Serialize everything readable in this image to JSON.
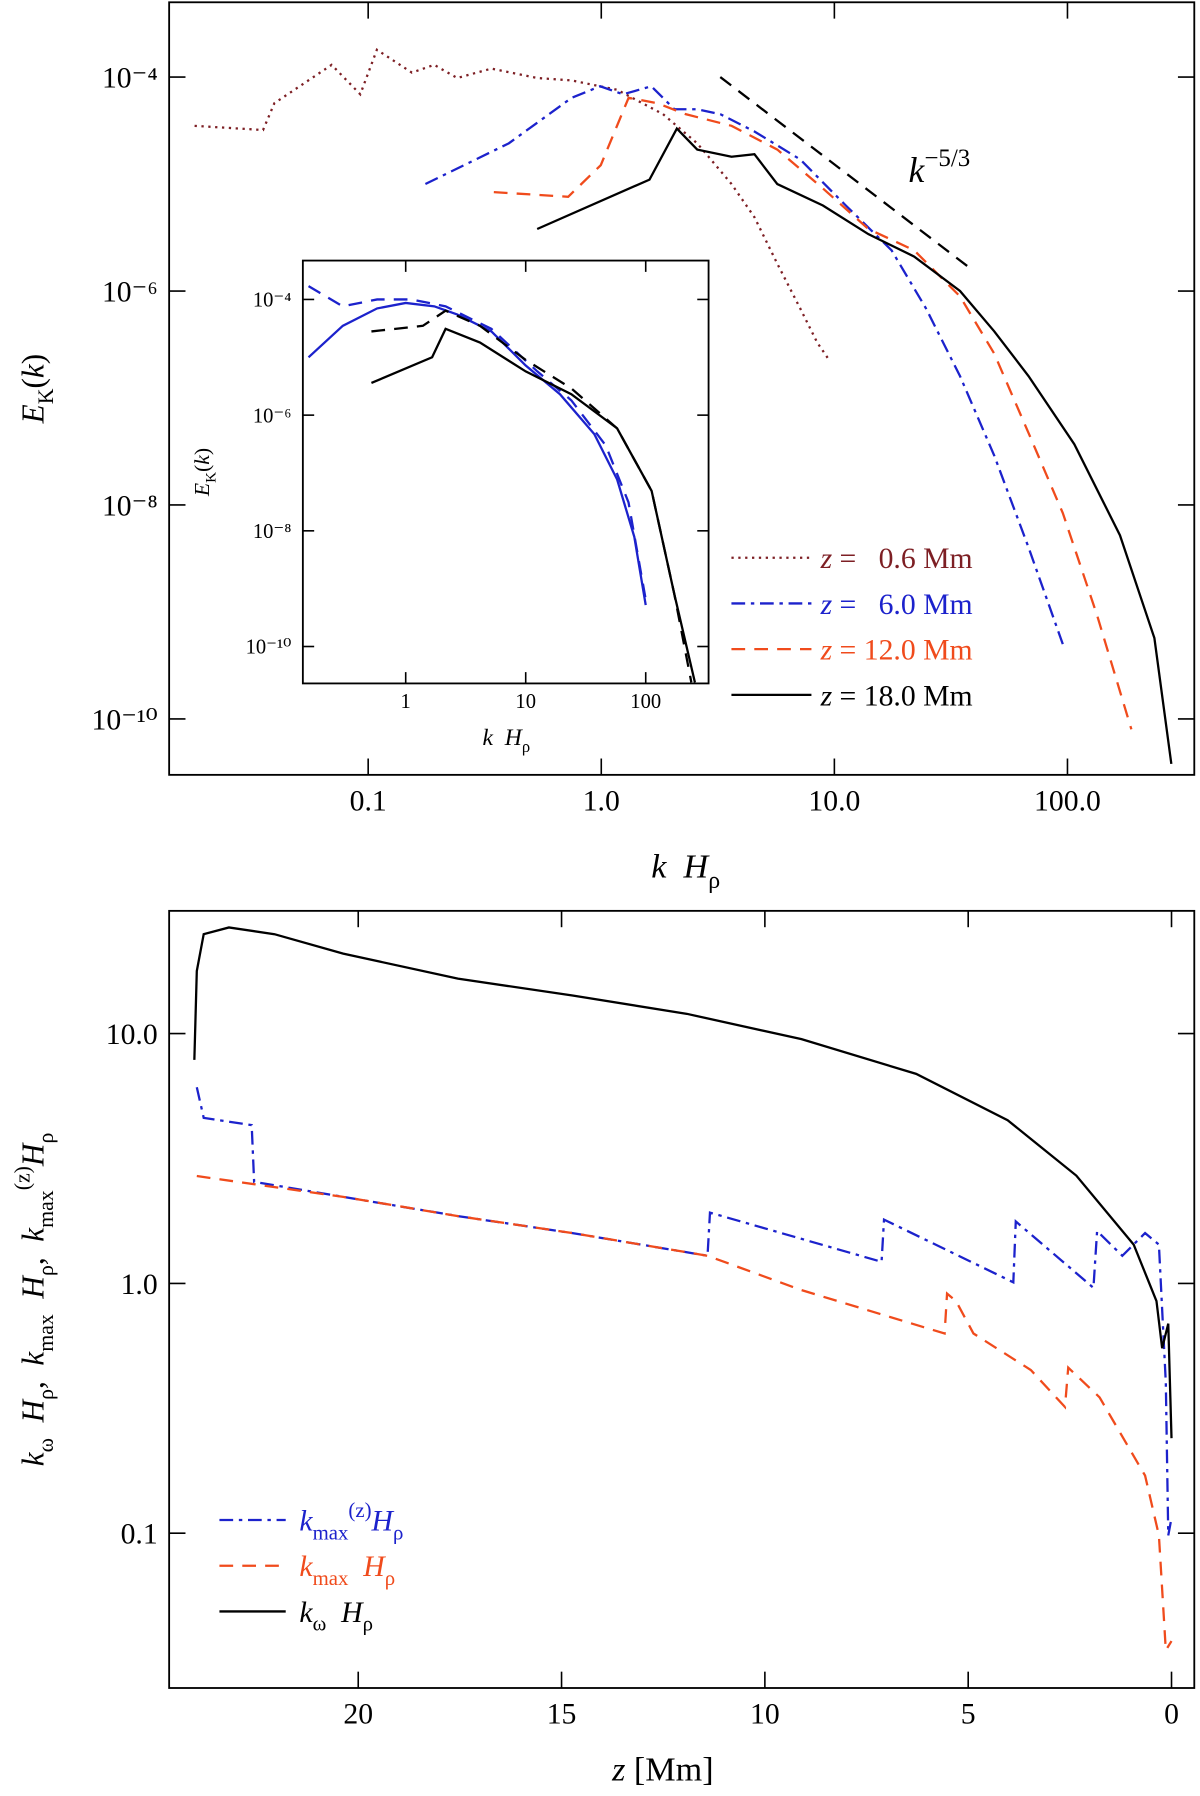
{
  "chart_data": [
    {
      "type": "line",
      "xlog": true,
      "ylog": true,
      "xlim": [
        0.014,
        350
      ],
      "ylim": [
        3e-11,
        0.0005
      ],
      "xticks": [
        0.1,
        {
          "value": 1,
          "label": "1.0"
        },
        {
          "value": 10,
          "label": "10.0"
        },
        {
          "value": 100,
          "label": "100.0"
        }
      ],
      "yticks": [
        {
          "value": 0.0001,
          "label": "10⁻⁴"
        },
        {
          "value": 1e-06,
          "label": "10⁻⁶"
        },
        {
          "value": 1e-08,
          "label": "10⁻⁸"
        },
        {
          "value": 1e-10,
          "label": "10⁻¹⁰"
        }
      ],
      "xlabel": [
        {
          "i": "k"
        },
        {
          "t": "  "
        },
        {
          "i": "H"
        },
        {
          "sub": "ρ"
        }
      ],
      "ylabel": [
        {
          "i": "E"
        },
        {
          "sub": "K"
        },
        {
          "t": "("
        },
        {
          "i": "k"
        },
        {
          "t": ")"
        }
      ],
      "legend": "lower right",
      "series": [
        {
          "name": [
            {
              "i": "z"
            },
            {
              "t": " =   0.6 Mm"
            }
          ],
          "color": "#7d1f24",
          "linestyle": "dotted",
          "x": [
            0.018,
            0.0354,
            0.0396,
            0.0697,
            0.0925,
            0.109,
            0.154,
            0.192,
            0.241,
            0.338,
            0.531,
            0.746,
            1.17,
            1.84,
            2.58,
            3.62,
            4.54,
            5.69,
            7.13,
            8.44,
            9.45
          ],
          "y": [
            3.5e-05,
            3.2e-05,
            5.7e-05,
            0.00013,
            6.9e-05,
            0.00018,
            0.00011,
            0.00013,
            9.8e-05,
            0.00012,
            9.8e-05,
            9.3e-05,
            7.6e-05,
            4.5e-05,
            2.4e-05,
            1e-05,
            4.9e-06,
            1.8e-06,
            6.9e-07,
            3.3e-07,
            2.3e-07
          ]
        },
        {
          "name": [
            {
              "i": "z"
            },
            {
              "t": " =   6.0 Mm"
            }
          ],
          "color": "#1c22cc",
          "linestyle": "dashdot",
          "x": [
            0.176,
            0.401,
            0.746,
            0.989,
            1.24,
            1.64,
            2.06,
            2.58,
            3.24,
            4.54,
            7.13,
            11.2,
            17.6,
            24.7,
            34.6,
            48.5,
            68.1,
            95.5
          ],
          "y": [
            1e-05,
            2.4e-05,
            6.4e-05,
            8.2e-05,
            6.9e-05,
            8.2e-05,
            5e-05,
            5e-05,
            4.5e-05,
            3.1e-05,
            1.7e-05,
            6.3e-06,
            2.4e-06,
            6.9e-07,
            1.6e-07,
            2.9e-08,
            4e-09,
            5e-10
          ]
        },
        {
          "name": [
            {
              "i": "z"
            },
            {
              "t": " = 12.0 Mm"
            }
          ],
          "color": "#f04b1c",
          "linestyle": "dashed",
          "x": [
            0.346,
            0.721,
            0.995,
            1.31,
            1.74,
            2.3,
            3.62,
            5.69,
            8.93,
            14.0,
            22.0,
            34.6,
            48.5,
            68.1,
            95.5,
            134,
            188
          ],
          "y": [
            8.4e-06,
            7.6e-06,
            1.5e-05,
            6.4e-05,
            5.7e-05,
            4.5e-05,
            3.5e-05,
            2.1e-05,
            9.1e-06,
            3.8e-06,
            2.4e-06,
            8.9e-07,
            2.6e-07,
            4.7e-08,
            8.4e-09,
            9.3e-10,
            8e-11
          ]
        },
        {
          "name": [
            {
              "i": "z"
            },
            {
              "t": " = 18.0 Mm"
            }
          ],
          "color": "#000000",
          "linestyle": "solid",
          "x": [
            0.531,
            1.61,
            2.11,
            2.58,
            3.62,
            4.54,
            5.69,
            8.93,
            14.0,
            22.0,
            34.6,
            48.5,
            68.1,
            107,
            168,
            236,
            279
          ],
          "y": [
            3.8e-06,
            1.1e-05,
            3.3e-05,
            2.1e-05,
            1.8e-05,
            1.9e-05,
            1e-05,
            6.3e-06,
            3.4e-06,
            2.1e-06,
            1e-06,
            4.2e-07,
            1.6e-07,
            3.7e-08,
            5.2e-09,
            5.7e-10,
            3.8e-11
          ]
        }
      ],
      "reference": {
        "x": [
          3.24,
          38.7
        ],
        "y": [
          0.0001,
          1.6e-06
        ],
        "color": "#000000",
        "linestyle": "dashed",
        "label": [
          {
            "i": "k"
          },
          {
            "sup": "−5/3"
          }
        ]
      }
    },
    {
      "type": "line",
      "xlog": true,
      "ylog": true,
      "xlim": [
        0.139,
        334
      ],
      "ylim": [
        2.3e-11,
        0.00047
      ],
      "xticks": [
        1,
        10,
        100
      ],
      "yticks": [
        {
          "value": 0.0001,
          "label": "10⁻⁴"
        },
        {
          "value": 1e-06,
          "label": "10⁻⁶"
        },
        {
          "value": 1e-08,
          "label": "10⁻⁸"
        },
        {
          "value": 1e-10,
          "label": "10⁻¹⁰"
        }
      ],
      "xlabel": [
        {
          "i": "k"
        },
        {
          "t": "  "
        },
        {
          "i": "H"
        },
        {
          "sub": "ρ"
        }
      ],
      "ylabel": [
        {
          "i": "E"
        },
        {
          "sub": "K"
        },
        {
          "t": "("
        },
        {
          "i": "k"
        },
        {
          "t": ")"
        }
      ],
      "series": [
        {
          "color": "#1c22cc",
          "linestyle": "solid",
          "x": [
            0.155,
            0.299,
            0.578,
            1,
            1.73,
            2.68,
            5.18,
            10,
            19.3,
            37.3,
            57.8,
            80.3,
            100
          ],
          "y": [
            1e-05,
            3.5e-05,
            7e-05,
            8.7e-05,
            7.6e-05,
            5.5e-05,
            2.8e-05,
            7.2e-06,
            2.3e-06,
            4.7e-07,
            7.7e-08,
            7.9e-09,
            5.2e-10
          ]
        },
        {
          "color": "#1c22cc",
          "linestyle": "dashed",
          "x": [
            0.155,
            0.299,
            0.578,
            1.12,
            2.15,
            5.18,
            12.5,
            24.0,
            46.4,
            71.9,
            100
          ],
          "y": [
            0.00017,
            7.6e-05,
            0.0001,
            0.0001,
            7.6e-05,
            3.1e-05,
            5.7e-06,
            1.8e-06,
            3e-07,
            3.1e-08,
            6.5e-10
          ]
        },
        {
          "color": "#000000",
          "linestyle": "dashed",
          "x": [
            0.518,
            1.39,
            2.15,
            4.16,
            10,
            24.0,
            57.8,
            112,
            173,
            240
          ],
          "y": [
            2.8e-05,
            3.5e-05,
            6.4e-05,
            3.5e-05,
            9e-06,
            2.9e-06,
            5.9e-07,
            4.9e-08,
            8.1e-10,
            2.4e-11
          ]
        },
        {
          "color": "#000000",
          "linestyle": "solid",
          "x": [
            0.518,
            1.66,
            2.15,
            4.16,
            10,
            24.0,
            57.8,
            112,
            173,
            257
          ],
          "y": [
            3.6e-06,
            1e-05,
            3.1e-05,
            1.8e-05,
            5.7e-06,
            2.3e-06,
            5.9e-07,
            4.9e-08,
            8.1e-10,
            2.4e-11
          ]
        }
      ]
    },
    {
      "type": "line",
      "xlog": false,
      "ylog": true,
      "xlim": [
        24.65,
        -0.56
      ],
      "ylim": [
        0.024,
        31
      ],
      "xticks": [
        20,
        15,
        10,
        5,
        0
      ],
      "yticks": [
        {
          "value": 10,
          "label": "10.0"
        },
        {
          "value": 1,
          "label": "1.0"
        },
        0.1
      ],
      "xlabel": [
        {
          "i": "z"
        },
        {
          "t": " [Mm]"
        }
      ],
      "ylabel": [
        {
          "i": "k"
        },
        {
          "sub": "ω"
        },
        {
          "t": "  "
        },
        {
          "i": "H"
        },
        {
          "sub": "ρ"
        },
        {
          "t": ",  "
        },
        {
          "i": "k"
        },
        {
          "sub": "max"
        },
        {
          "t": "  "
        },
        {
          "i": "H"
        },
        {
          "sub": "ρ"
        },
        {
          "t": ",  "
        },
        {
          "i": "k"
        },
        {
          "sub": "max"
        },
        {
          "sup": "(z)"
        },
        {
          "i": "H"
        },
        {
          "sub": "ρ"
        }
      ],
      "legend": "lower left",
      "series": [
        {
          "name": [
            {
              "i": "k"
            },
            {
              "sub": "max"
            },
            {
              "sup": "(z)"
            },
            {
              "i": "H"
            },
            {
              "sub": "ρ"
            }
          ],
          "color": "#1c22cc",
          "linestyle": "dashdot",
          "x": [
            23.97,
            23.8,
            22.62,
            22.56,
            20.37,
            17.55,
            14.73,
            11.41,
            11.35,
            7.13,
            7.07,
            3.89,
            3.83,
            1.92,
            1.83,
            1.21,
            0.65,
            0.31,
            0.14,
            0.08,
            0.0
          ],
          "y": [
            6.1,
            4.6,
            4.3,
            2.55,
            2.22,
            1.86,
            1.59,
            1.29,
            1.92,
            1.22,
            1.8,
            1.01,
            1.77,
            0.96,
            1.62,
            1.29,
            1.59,
            1.43,
            0.4,
            0.098,
            0.115
          ]
        },
        {
          "name": [
            {
              "i": "k"
            },
            {
              "sub": "max"
            },
            {
              "t": "  "
            },
            {
              "i": "H"
            },
            {
              "sub": "ρ"
            }
          ],
          "color": "#f04b1c",
          "linestyle": "dashed",
          "x": [
            23.97,
            20.37,
            17.55,
            14.73,
            11.41,
            9.1,
            5.58,
            5.52,
            5.3,
            4.87,
            3.46,
            2.62,
            2.54,
            1.77,
            0.65,
            0.31,
            0.14,
            0.0
          ],
          "y": [
            2.69,
            2.22,
            1.86,
            1.59,
            1.29,
            0.94,
            0.63,
            0.91,
            0.85,
            0.63,
            0.45,
            0.32,
            0.46,
            0.35,
            0.17,
            0.098,
            0.034,
            0.037
          ]
        },
        {
          "name": [
            {
              "i": "k"
            },
            {
              "sub": "ω"
            },
            {
              "t": "  "
            },
            {
              "i": "H"
            },
            {
              "sub": "ρ"
            }
          ],
          "color": "#000000",
          "linestyle": "solid",
          "x": [
            24.03,
            23.97,
            23.8,
            23.18,
            22.06,
            20.37,
            17.55,
            14.73,
            11.92,
            9.1,
            6.28,
            4.03,
            2.34,
            0.93,
            0.37,
            0.23,
            0.08,
            0.0
          ],
          "y": [
            7.85,
            17.8,
            25.0,
            26.6,
            25.0,
            20.9,
            16.6,
            14.2,
            12.0,
            9.5,
            6.9,
            4.5,
            2.7,
            1.43,
            0.85,
            0.55,
            0.69,
            0.24
          ]
        }
      ]
    }
  ]
}
